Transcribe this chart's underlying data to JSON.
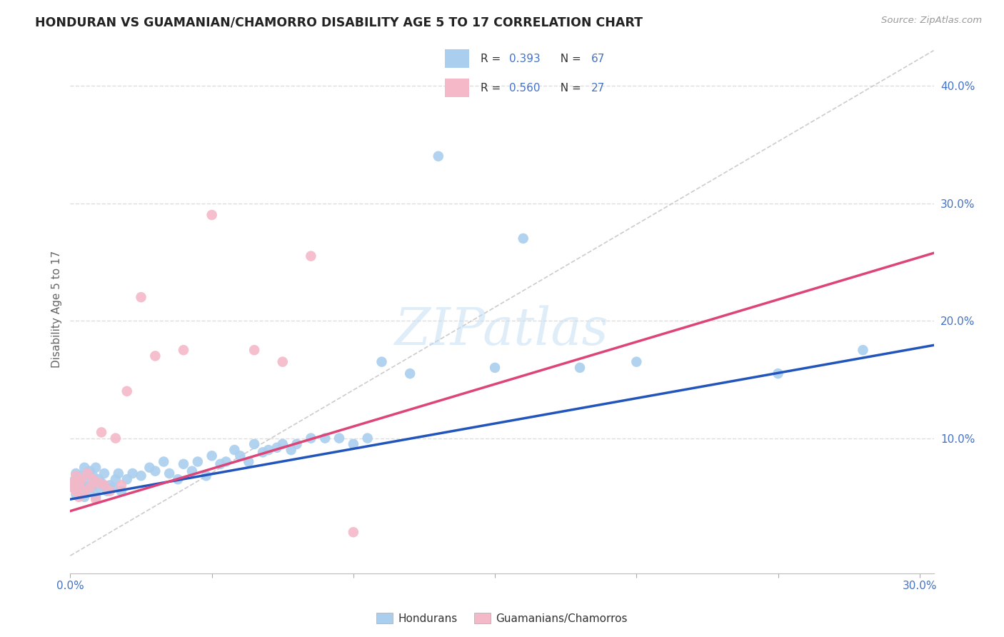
{
  "title": "HONDURAN VS GUAMANIAN/CHAMORRO DISABILITY AGE 5 TO 17 CORRELATION CHART",
  "source": "Source: ZipAtlas.com",
  "ylabel_label": "Disability Age 5 to 17",
  "x_min": 0.0,
  "x_max": 0.305,
  "y_min": -0.015,
  "y_max": 0.435,
  "blue_color": "#aacfee",
  "pink_color": "#f4b8c8",
  "blue_line_color": "#2255bb",
  "pink_line_color": "#dd4477",
  "diagonal_color": "#cccccc",
  "watermark": "ZIPatlas",
  "blue_intercept": 0.048,
  "blue_slope": 0.43,
  "pink_intercept": 0.038,
  "pink_slope": 0.72,
  "honduran_x": [
    0.001,
    0.001,
    0.002,
    0.002,
    0.003,
    0.003,
    0.004,
    0.004,
    0.005,
    0.005,
    0.006,
    0.006,
    0.007,
    0.007,
    0.008,
    0.008,
    0.009,
    0.009,
    0.01,
    0.01,
    0.011,
    0.012,
    0.013,
    0.014,
    0.015,
    0.016,
    0.017,
    0.018,
    0.02,
    0.022,
    0.025,
    0.028,
    0.03,
    0.033,
    0.035,
    0.038,
    0.04,
    0.043,
    0.045,
    0.048,
    0.05,
    0.053,
    0.055,
    0.058,
    0.06,
    0.063,
    0.065,
    0.068,
    0.07,
    0.073,
    0.075,
    0.078,
    0.08,
    0.085,
    0.09,
    0.095,
    0.1,
    0.105,
    0.11,
    0.12,
    0.13,
    0.15,
    0.16,
    0.18,
    0.2,
    0.25,
    0.28
  ],
  "honduran_y": [
    0.063,
    0.058,
    0.07,
    0.052,
    0.065,
    0.055,
    0.06,
    0.068,
    0.075,
    0.05,
    0.058,
    0.065,
    0.055,
    0.072,
    0.06,
    0.068,
    0.05,
    0.075,
    0.058,
    0.065,
    0.062,
    0.07,
    0.055,
    0.06,
    0.058,
    0.065,
    0.07,
    0.055,
    0.065,
    0.07,
    0.068,
    0.075,
    0.072,
    0.08,
    0.07,
    0.065,
    0.078,
    0.072,
    0.08,
    0.068,
    0.085,
    0.078,
    0.08,
    0.09,
    0.085,
    0.08,
    0.095,
    0.088,
    0.09,
    0.092,
    0.095,
    0.09,
    0.095,
    0.1,
    0.1,
    0.1,
    0.095,
    0.1,
    0.165,
    0.155,
    0.34,
    0.16,
    0.27,
    0.16,
    0.165,
    0.155,
    0.175
  ],
  "guamanian_x": [
    0.001,
    0.001,
    0.002,
    0.002,
    0.003,
    0.003,
    0.004,
    0.005,
    0.006,
    0.007,
    0.008,
    0.009,
    0.01,
    0.011,
    0.012,
    0.014,
    0.016,
    0.018,
    0.02,
    0.025,
    0.03,
    0.04,
    0.05,
    0.065,
    0.075,
    0.085,
    0.1
  ],
  "guamanian_y": [
    0.058,
    0.062,
    0.055,
    0.068,
    0.06,
    0.05,
    0.065,
    0.055,
    0.07,
    0.058,
    0.065,
    0.048,
    0.062,
    0.105,
    0.06,
    0.055,
    0.1,
    0.06,
    0.14,
    0.22,
    0.17,
    0.175,
    0.29,
    0.175,
    0.165,
    0.255,
    0.02
  ]
}
